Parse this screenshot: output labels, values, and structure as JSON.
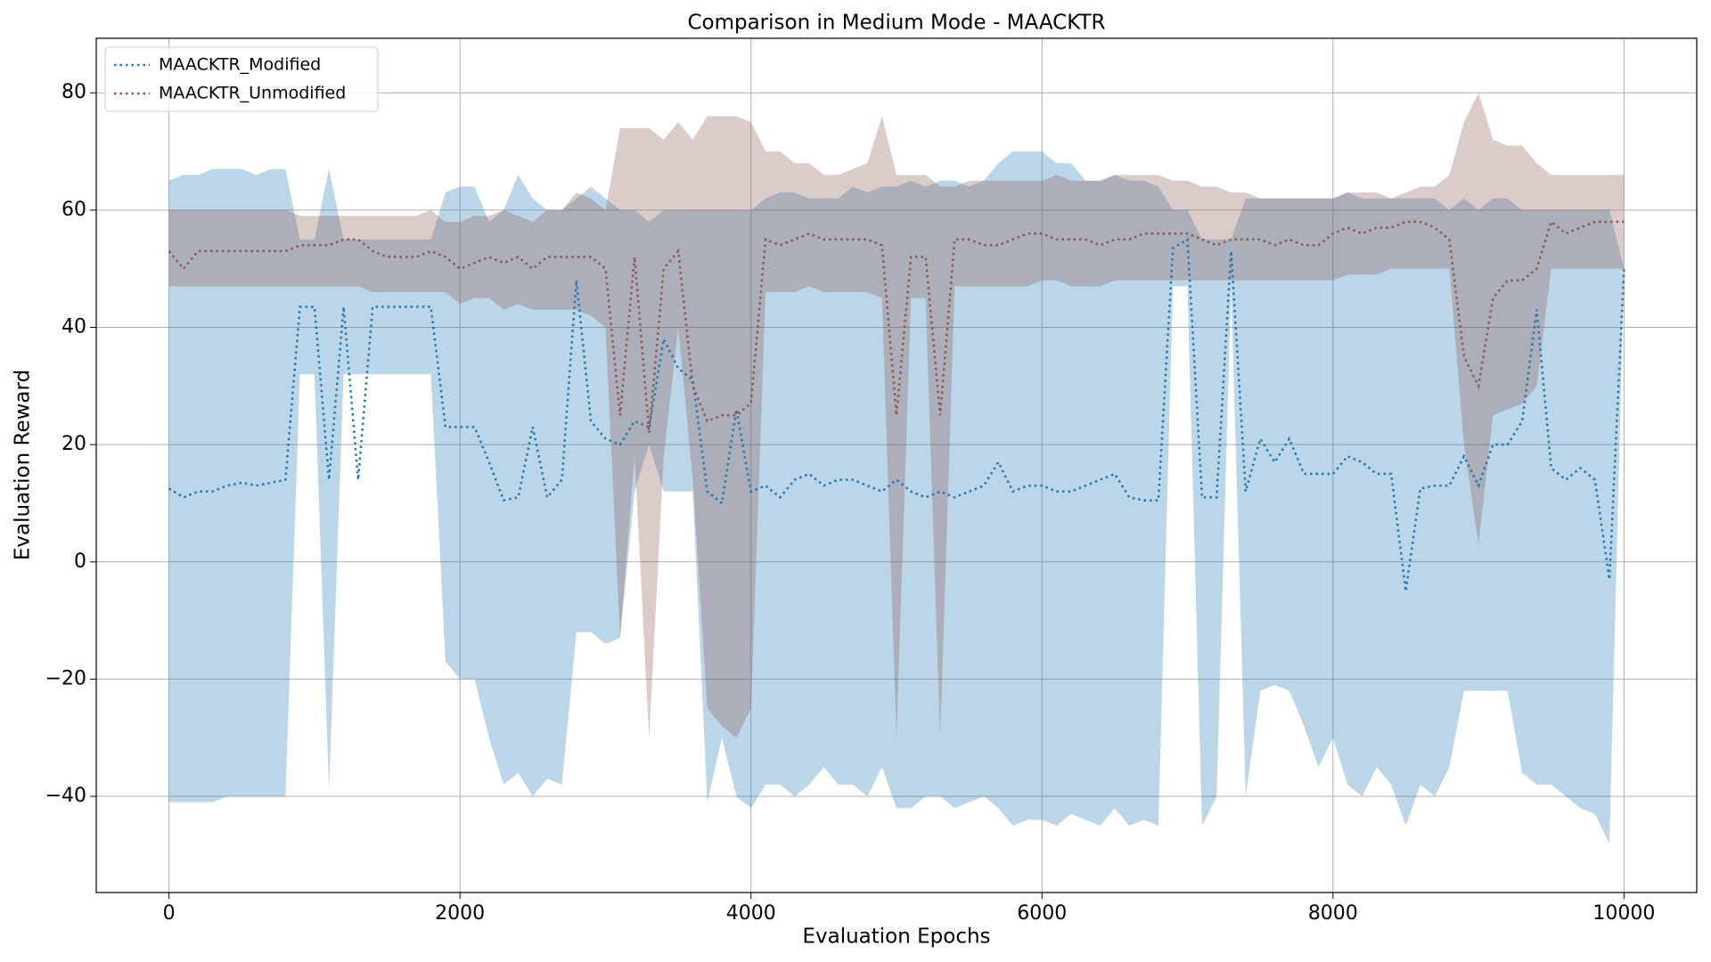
{
  "chart_data": {
    "type": "line",
    "title": "Comparison in Medium Mode - MAACKTR",
    "xlabel": "Evaluation Epochs",
    "ylabel": "Evaluation Reward",
    "xlim": [
      -500,
      10500
    ],
    "ylim": [
      -56.4,
      89.3
    ],
    "xticks": [
      0,
      2000,
      4000,
      6000,
      8000,
      10000
    ],
    "yticks": [
      {
        "value": -40,
        "label": "−40"
      },
      {
        "value": -20,
        "label": "−20"
      },
      0,
      20,
      40,
      60,
      80
    ],
    "grid": true,
    "legend_loc": "upper left",
    "linestyle": "dotted",
    "band_alpha": 0.3,
    "x": [
      0,
      100,
      200,
      300,
      400,
      500,
      600,
      700,
      800,
      900,
      1000,
      1100,
      1200,
      1300,
      1400,
      1500,
      1600,
      1700,
      1800,
      1900,
      2000,
      2100,
      2200,
      2300,
      2400,
      2500,
      2600,
      2700,
      2800,
      2900,
      3000,
      3100,
      3200,
      3300,
      3400,
      3500,
      3600,
      3700,
      3800,
      3900,
      4000,
      4100,
      4200,
      4300,
      4400,
      4500,
      4600,
      4700,
      4800,
      4900,
      5000,
      5100,
      5200,
      5300,
      5400,
      5500,
      5600,
      5700,
      5800,
      5900,
      6000,
      6100,
      6200,
      6300,
      6400,
      6500,
      6600,
      6700,
      6800,
      6900,
      7000,
      7100,
      7200,
      7300,
      7400,
      7500,
      7600,
      7700,
      7800,
      7900,
      8000,
      8100,
      8200,
      8300,
      8400,
      8500,
      8600,
      8700,
      8800,
      8900,
      9000,
      9100,
      9200,
      9300,
      9400,
      9500,
      9600,
      9700,
      9800,
      9900,
      10000
    ],
    "series": [
      {
        "name": "MAACKTR_Modified",
        "color": "#1f77b4",
        "values": [
          12.5,
          11,
          12,
          12,
          13,
          13.5,
          13,
          13.5,
          14,
          43.5,
          43.5,
          14,
          43.5,
          14,
          43.5,
          43.5,
          43.5,
          43.5,
          43.5,
          23,
          23,
          23,
          17,
          10.5,
          11,
          23,
          11,
          14,
          48,
          24,
          21,
          20,
          24,
          23,
          38,
          33,
          31,
          12,
          10,
          26,
          12,
          13,
          11,
          14,
          15,
          13,
          14,
          14,
          13,
          12,
          14,
          12,
          11,
          12,
          11,
          12,
          13,
          17,
          12,
          13,
          13,
          12,
          12,
          13,
          14,
          15,
          11,
          10.5,
          10.5,
          53.5,
          55,
          11,
          11,
          53,
          12,
          21,
          17,
          21,
          15,
          15,
          15,
          18,
          17,
          15,
          15,
          -5,
          12.5,
          13,
          13,
          18,
          13,
          20,
          20,
          24,
          43,
          16,
          14,
          16,
          14,
          -3,
          50
        ],
        "lower": [
          -41,
          -41,
          -41,
          -41,
          -40,
          -40,
          -40,
          -40,
          -40,
          32,
          32,
          -39,
          32,
          32,
          32,
          32,
          32,
          32,
          32,
          -17,
          -20,
          -20,
          -30,
          -38,
          -36,
          -40,
          -37,
          -38,
          -12,
          -12,
          -14,
          -13,
          12,
          20,
          12,
          12,
          12,
          -41,
          -30,
          -40,
          -42,
          -38,
          -38,
          -40,
          -38,
          -35,
          -38,
          -38,
          -40,
          -35,
          -42,
          -42,
          -40,
          -40,
          -42,
          -41,
          -40,
          -42,
          -45,
          -44,
          -44,
          -45,
          -43,
          -44,
          -45,
          -42,
          -45,
          -44,
          -45,
          47,
          47,
          -45,
          -40,
          47,
          -40,
          -22,
          -21,
          -22,
          -28,
          -35,
          -30,
          -38,
          -40,
          -35,
          -38,
          -45,
          -38,
          -40,
          -35,
          -22,
          -22,
          -22,
          -22,
          -36,
          -38,
          -38,
          -40,
          -42,
          -43,
          -48,
          50
        ],
        "upper": [
          65,
          66,
          66,
          67,
          67,
          67,
          66,
          67,
          67,
          55,
          55,
          67,
          55,
          55,
          55,
          55,
          55,
          55,
          55,
          63,
          64,
          64,
          58,
          60,
          66,
          62,
          60,
          60,
          62,
          64,
          62,
          60,
          60,
          58,
          60,
          60,
          60,
          60,
          60,
          60,
          60,
          62,
          63,
          63,
          62,
          62,
          62,
          64,
          63,
          64,
          64,
          65,
          64,
          65,
          65,
          64,
          65,
          68,
          70,
          70,
          70,
          68,
          68,
          65,
          65,
          66,
          65,
          65,
          64,
          60,
          60,
          55,
          55,
          55,
          62,
          62,
          62,
          62,
          62,
          62,
          62,
          63,
          62,
          62,
          62,
          62,
          62,
          62,
          60,
          62,
          60,
          62,
          62,
          60,
          60,
          60,
          60,
          60,
          60,
          60,
          50
        ]
      },
      {
        "name": "MAACKTR_Unmodified",
        "color": "#8c564b",
        "values": [
          53,
          50,
          53,
          53,
          53,
          53,
          53,
          53,
          53,
          54,
          54,
          54,
          55,
          55,
          53,
          52,
          52,
          52,
          53,
          52,
          50,
          51,
          52,
          51,
          52,
          50,
          52,
          52,
          52,
          52,
          50,
          25,
          52,
          22,
          50,
          53,
          30,
          24,
          25,
          25,
          27,
          55,
          54,
          55,
          56,
          55,
          55,
          55,
          55,
          54,
          25,
          52,
          52,
          25,
          55,
          55,
          54,
          54,
          55,
          56,
          56,
          55,
          55,
          55,
          54,
          55,
          55,
          56,
          56,
          56,
          56,
          55,
          54,
          55,
          55,
          55,
          54,
          55,
          54,
          54,
          56,
          57,
          56,
          57,
          57,
          58,
          58,
          57,
          55,
          35,
          30,
          45,
          48,
          48,
          50,
          58,
          56,
          57,
          58,
          58,
          58
        ],
        "lower": [
          47,
          47,
          47,
          47,
          47,
          47,
          47,
          47,
          47,
          47,
          47,
          47,
          47,
          47,
          46,
          46,
          46,
          46,
          46,
          46,
          44,
          45,
          45,
          43,
          44,
          43,
          43,
          43,
          43,
          42,
          40,
          -13,
          18,
          -30,
          18,
          40,
          14,
          -25,
          -28,
          -30,
          -25,
          46,
          46,
          46,
          47,
          46,
          46,
          46,
          46,
          45,
          -30,
          45,
          45,
          -30,
          47,
          47,
          47,
          47,
          47,
          47,
          48,
          48,
          47,
          47,
          47,
          48,
          48,
          48,
          48,
          48,
          48,
          48,
          48,
          48,
          48,
          48,
          48,
          48,
          48,
          48,
          48,
          49,
          49,
          49,
          50,
          50,
          50,
          50,
          50,
          20,
          3,
          25,
          26,
          27,
          30,
          50,
          50,
          50,
          50,
          50,
          50
        ],
        "upper": [
          60,
          60,
          60,
          60,
          60,
          60,
          60,
          60,
          60,
          59,
          59,
          59,
          59,
          59,
          59,
          59,
          59,
          59,
          60,
          58,
          58,
          59,
          59,
          60,
          59,
          58,
          60,
          60,
          63,
          62,
          60,
          74,
          74,
          74,
          72,
          75,
          72,
          76,
          76,
          76,
          75,
          70,
          70,
          68,
          68,
          66,
          66,
          67,
          68,
          76,
          66,
          66,
          66,
          64,
          64,
          65,
          65,
          65,
          65,
          65,
          65,
          66,
          65,
          65,
          65,
          66,
          66,
          66,
          66,
          65,
          65,
          64,
          64,
          63,
          63,
          62,
          62,
          62,
          62,
          62,
          62,
          63,
          63,
          63,
          62,
          63,
          64,
          64,
          66,
          75,
          80,
          72,
          71,
          71,
          68,
          66,
          66,
          66,
          66,
          66,
          66
        ]
      }
    ]
  }
}
